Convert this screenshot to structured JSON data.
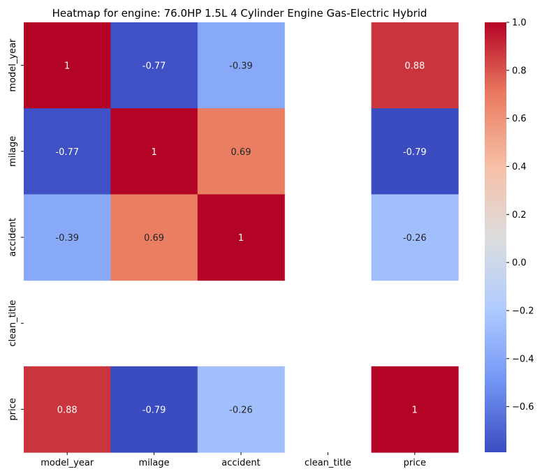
{
  "chart_data": {
    "type": "heatmap",
    "title": "Heatmap for engine: 76.0HP 1.5L 4 Cylinder Engine Gas-Electric Hybrid",
    "xlabel": "",
    "ylabel": "",
    "row_labels": [
      "model_year",
      "milage",
      "accident",
      "clean_title",
      "price"
    ],
    "col_labels": [
      "model_year",
      "milage",
      "accident",
      "clean_title",
      "price"
    ],
    "values": [
      [
        1.0,
        -0.77,
        -0.39,
        null,
        0.88
      ],
      [
        -0.77,
        1.0,
        0.69,
        null,
        -0.79
      ],
      [
        -0.39,
        0.69,
        1.0,
        null,
        -0.26
      ],
      [
        null,
        null,
        null,
        null,
        null
      ],
      [
        0.88,
        -0.79,
        -0.26,
        null,
        1.0
      ]
    ],
    "annotations": [
      [
        "1",
        "-0.77",
        "-0.39",
        "",
        "0.88"
      ],
      [
        "-0.77",
        "1",
        "0.69",
        "",
        "-0.79"
      ],
      [
        "-0.39",
        "0.69",
        "1",
        "",
        "-0.26"
      ],
      [
        "",
        "",
        "",
        "",
        ""
      ],
      [
        "0.88",
        "-0.79",
        "-0.26",
        "",
        "1"
      ]
    ],
    "colormap": "coolwarm",
    "colormap_stops": [
      "#3b4cc0",
      "#7396f5",
      "#b0cbff",
      "#dcdddd",
      "#f6bfa6",
      "#ea7b60",
      "#b40426"
    ],
    "vmin": -0.79,
    "vmax": 1.0,
    "colorbar": {
      "ticks": [
        1.0,
        0.8,
        0.6,
        0.4,
        0.2,
        0.0,
        -0.2,
        -0.4,
        -0.6
      ],
      "tick_labels": [
        "1.0",
        "0.8",
        "0.6",
        "0.4",
        "0.2",
        "0.0",
        "−0.2",
        "−0.4",
        "−0.6"
      ],
      "placement": "right"
    }
  }
}
